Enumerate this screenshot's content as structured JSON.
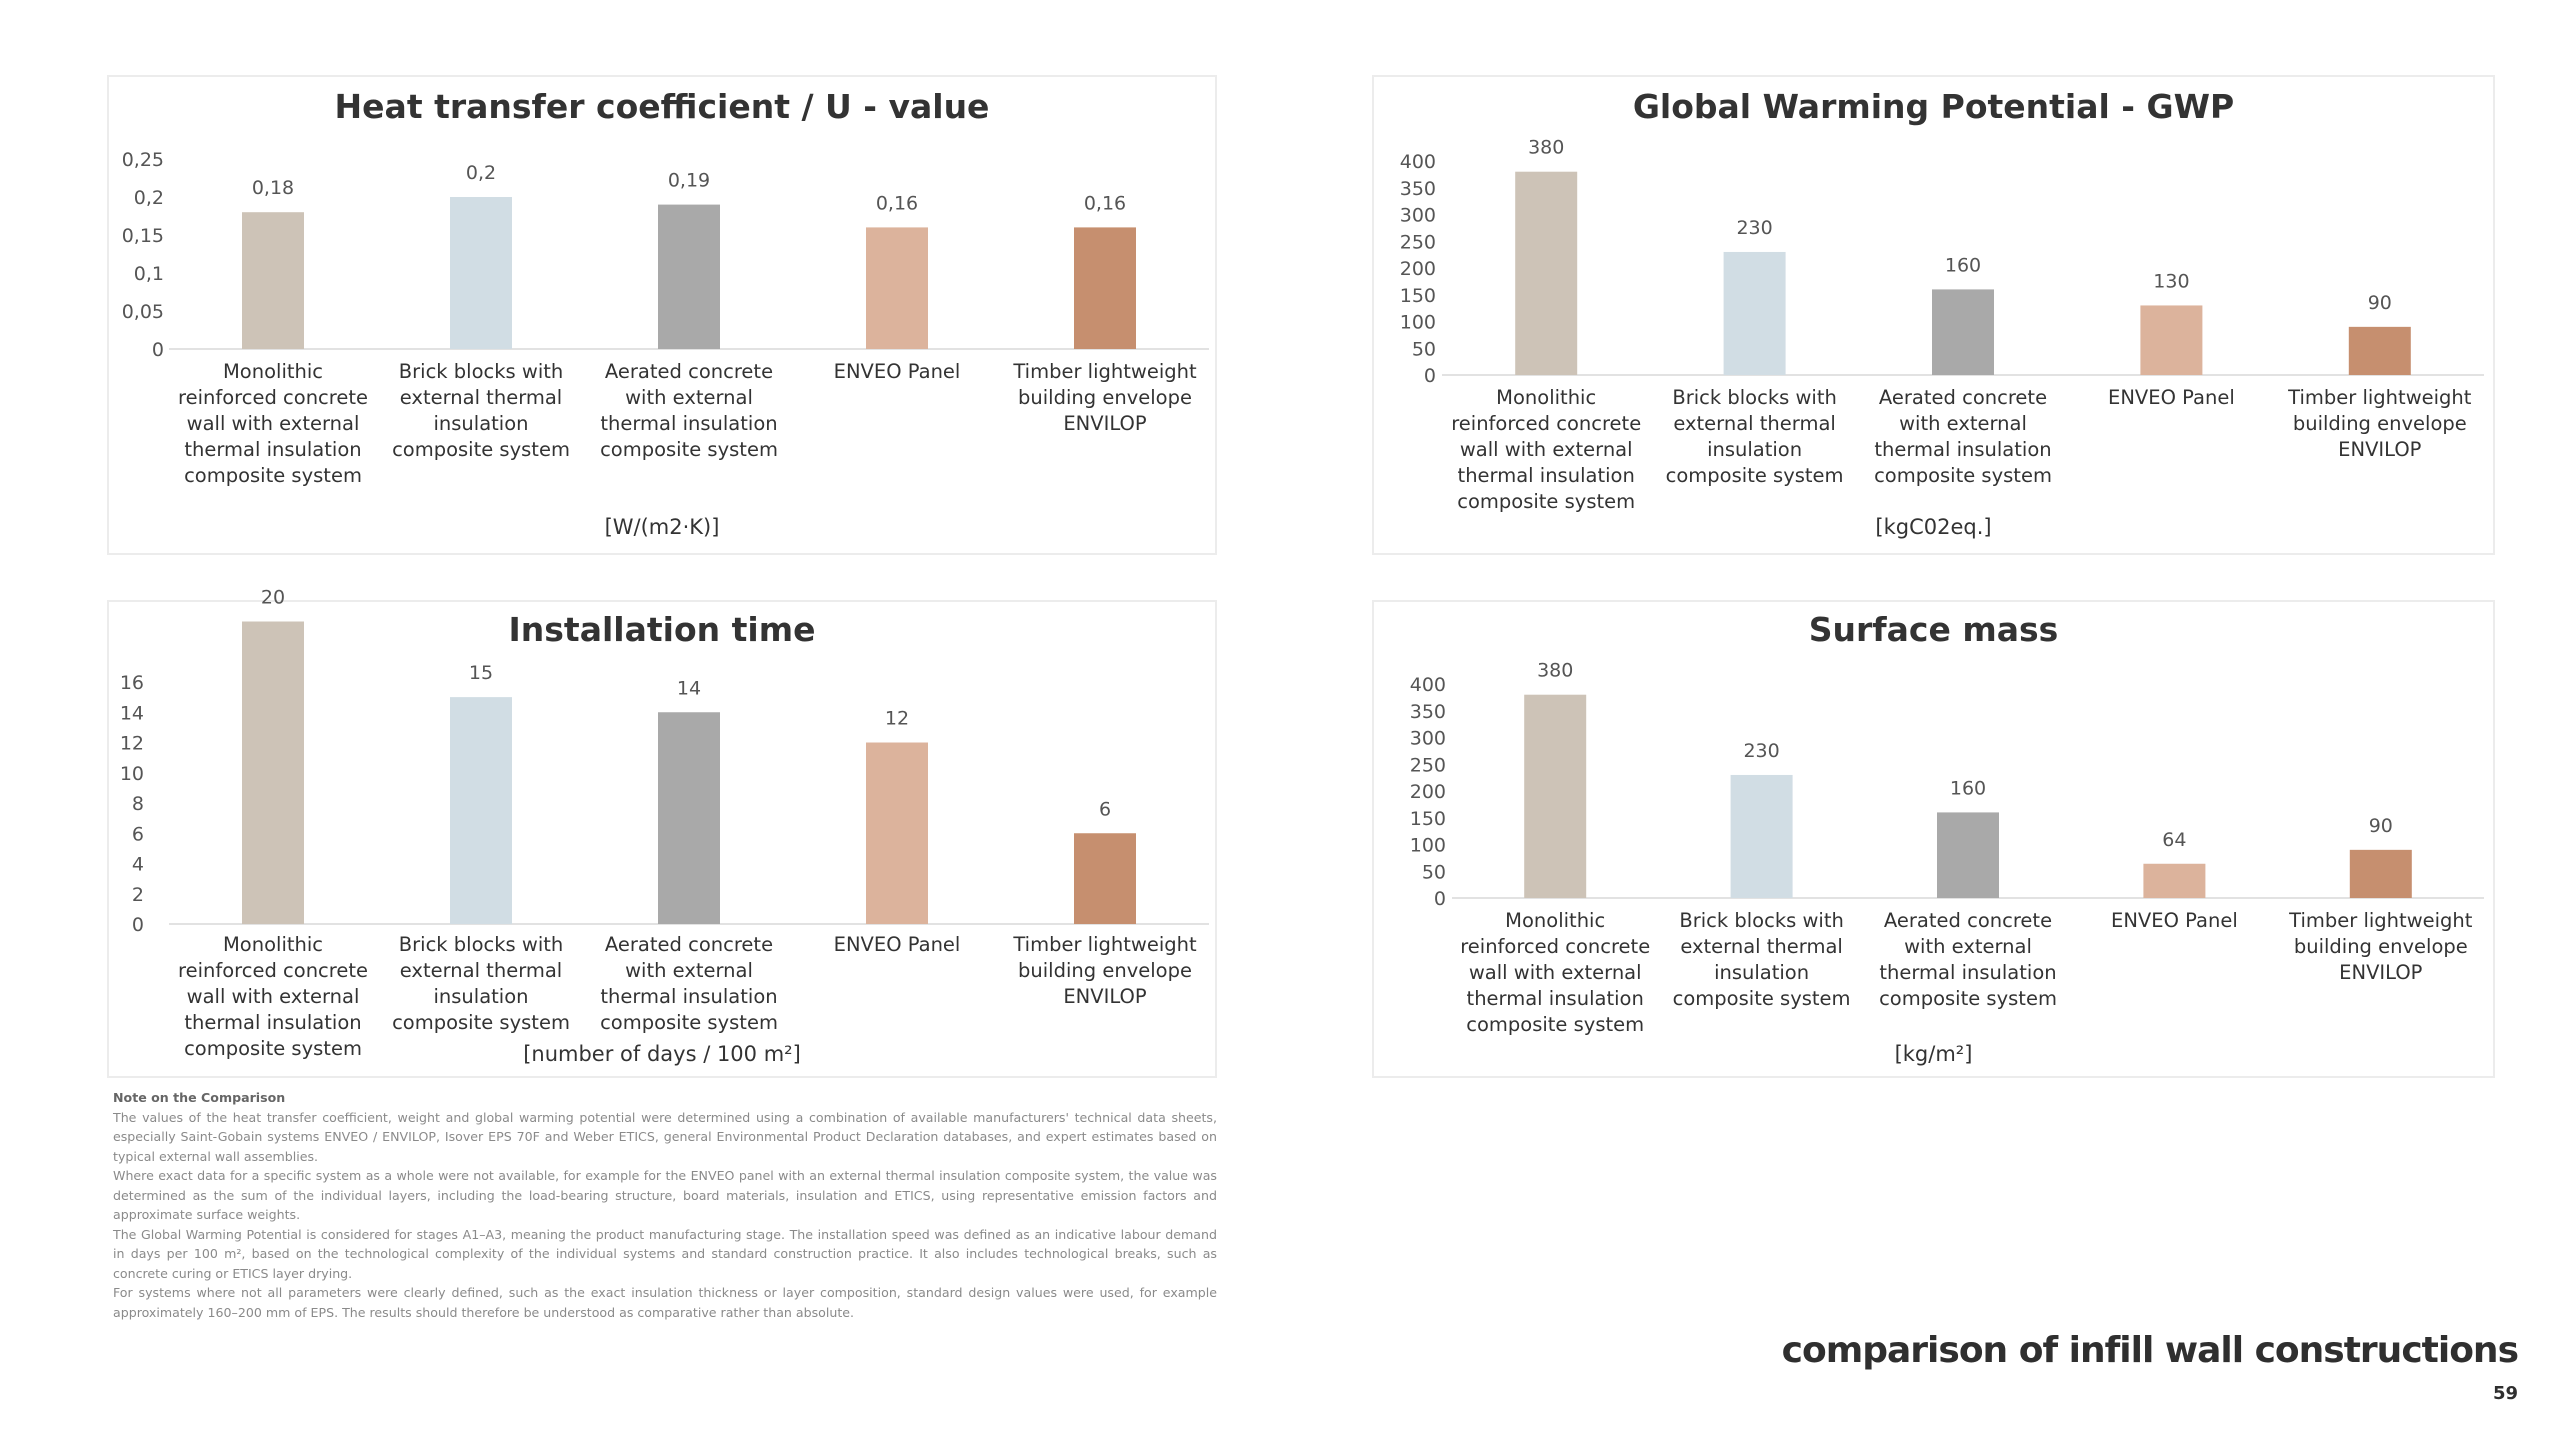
{
  "colors": {
    "monolithic": "#cdc3b7",
    "brick": "#d1dde4",
    "aerated": "#a9a9a9",
    "enveo": "#dcb39c",
    "timber": "#c68f6f",
    "baseline": "#d9d9d9"
  },
  "chart_data": [
    {
      "id": "u",
      "type": "bar",
      "title": "Heat transfer coefficient / U - value",
      "unit_label": "[W/(m2·K)]",
      "categories": [
        [
          "Monolithic",
          "reinforced concrete",
          "wall with external",
          "thermal insulation",
          "composite system"
        ],
        [
          "Brick blocks with",
          "external thermal",
          "insulation",
          "composite system"
        ],
        [
          "Aerated concrete",
          "with external",
          "thermal insulation",
          "composite system"
        ],
        [
          "ENVEO Panel"
        ],
        [
          "Timber lightweight",
          "building envelope",
          "ENVILOP"
        ]
      ],
      "values": [
        0.18,
        0.2,
        0.19,
        0.16,
        0.16
      ],
      "value_labels": [
        "0,18",
        "0,2",
        "0,19",
        "0,16",
        "0,16"
      ],
      "yticks": [
        0,
        0.05,
        0.1,
        0.15,
        0.2,
        0.25
      ],
      "ytick_labels": [
        "0",
        "0,05",
        "0,1",
        "0,15",
        "0,2",
        "0,25"
      ],
      "ylim": [
        0,
        0.25
      ],
      "grid": false,
      "legend": false
    },
    {
      "id": "gwp",
      "type": "bar",
      "title": "Global Warming Potential - GWP",
      "unit_label": "[kgC02eq.]",
      "categories": [
        [
          "Monolithic",
          "reinforced concrete",
          "wall with external",
          "thermal insulation",
          "composite system"
        ],
        [
          "Brick blocks with",
          "external thermal",
          "insulation",
          "composite system"
        ],
        [
          "Aerated concrete",
          "with external",
          "thermal insulation",
          "composite system"
        ],
        [
          "ENVEO Panel"
        ],
        [
          "Timber lightweight",
          "building envelope",
          "ENVILOP"
        ]
      ],
      "values": [
        380,
        230,
        160,
        130,
        90
      ],
      "value_labels": [
        "380",
        "230",
        "160",
        "130",
        "90"
      ],
      "yticks": [
        0,
        50,
        100,
        150,
        200,
        250,
        300,
        350,
        400
      ],
      "ytick_labels": [
        "0",
        "50",
        "100",
        "150",
        "200",
        "250",
        "300",
        "350",
        "400"
      ],
      "ylim": [
        0,
        400
      ],
      "grid": false,
      "legend": false
    },
    {
      "id": "ins",
      "type": "bar",
      "title": "Installation time",
      "unit_label": "[number of days / 100 m²]",
      "categories": [
        [
          "Monolithic",
          "reinforced concrete",
          "wall with external",
          "thermal insulation",
          "composite system"
        ],
        [
          "Brick blocks with",
          "external thermal",
          "insulation",
          "composite system"
        ],
        [
          "Aerated concrete",
          "with external",
          "thermal insulation",
          "composite system"
        ],
        [
          "ENVEO Panel"
        ],
        [
          "Timber lightweight",
          "building envelope",
          "ENVILOP"
        ]
      ],
      "values": [
        20,
        15,
        14,
        12,
        6
      ],
      "value_labels": [
        "20",
        "15",
        "14",
        "12",
        "6"
      ],
      "yticks": [
        0,
        2,
        4,
        6,
        8,
        10,
        12,
        14,
        16
      ],
      "ytick_labels": [
        "0",
        "2",
        "4",
        "6",
        "8",
        "10",
        "12",
        "14",
        "16"
      ],
      "ylim": [
        0,
        16
      ],
      "grid": false,
      "legend": false
    },
    {
      "id": "sm",
      "type": "bar",
      "title": "Surface mass",
      "unit_label": "[kg/m²]",
      "categories": [
        [
          "Monolithic",
          "reinforced concrete",
          "wall with external",
          "thermal insulation",
          "composite system"
        ],
        [
          "Brick blocks with",
          "external thermal",
          "insulation",
          "composite system"
        ],
        [
          "Aerated concrete",
          "with external",
          "thermal insulation",
          "composite system"
        ],
        [
          "ENVEO Panel"
        ],
        [
          "Timber lightweight",
          "building envelope",
          "ENVILOP"
        ]
      ],
      "values": [
        380,
        230,
        160,
        64,
        90
      ],
      "value_labels": [
        "380",
        "230",
        "160",
        "64",
        "90"
      ],
      "yticks": [
        0,
        50,
        100,
        150,
        200,
        250,
        300,
        350,
        400
      ],
      "ytick_labels": [
        "0",
        "50",
        "100",
        "150",
        "200",
        "250",
        "300",
        "350",
        "400"
      ],
      "ylim": [
        0,
        400
      ],
      "grid": false,
      "legend": false
    }
  ],
  "note": {
    "title": "Note on the Comparison",
    "paragraphs": [
      "The values of the heat transfer coefficient, weight and global warming potential were determined using a combination of available manufacturers' technical data sheets, especially Saint-Gobain systems ENVEO / ENVILOP, Isover EPS 70F and Weber ETICS, general Environmental Product Declaration databases, and expert estimates based on typical external wall assemblies.",
      "Where exact data for a specific system as a whole were not available, for example for the ENVEO panel with an external thermal insulation composite system, the value was determined as the sum of the individual layers, including the load-bearing structure, board materials, insulation and ETICS, using representative emission factors and approximate surface weights.",
      "The Global Warming Potential is considered for stages A1–A3, meaning the product manufacturing stage. The installation speed was defined as an indicative labour demand in days per 100 m², based on the technological complexity of the individual systems and standard construction practice. It also includes technological breaks, such as concrete curing or ETICS layer drying.",
      "For systems where not all parameters were clearly defined, such as the exact insulation thickness or layer composition, standard design values were used, for example approximately 160–200 mm of EPS. The results should therefore be understood as comparative rather than absolute."
    ]
  },
  "footer": {
    "title": "comparison of infill wall constructions",
    "page_number": "59"
  }
}
